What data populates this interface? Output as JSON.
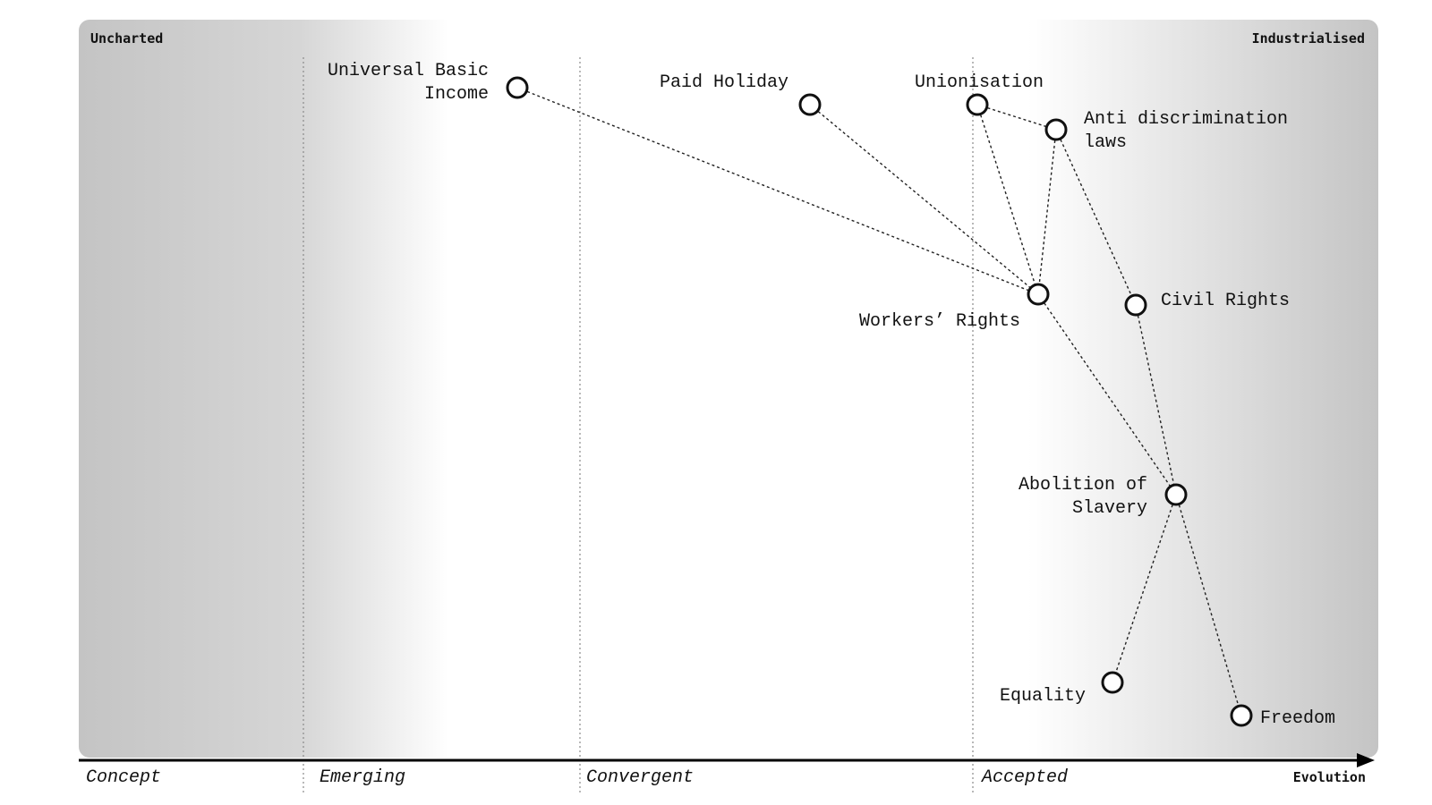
{
  "corners": {
    "top_left": "Uncharted",
    "top_right": "Industrialised"
  },
  "axis": {
    "name": "Evolution",
    "stages": [
      "Concept",
      "Emerging",
      "Convergent",
      "Accepted"
    ]
  },
  "nodes": [
    {
      "id": "ubi",
      "label": [
        "Universal Basic",
        "Income"
      ]
    },
    {
      "id": "paid-holiday",
      "label": [
        "Paid Holiday"
      ]
    },
    {
      "id": "unionisation",
      "label": [
        "Unionisation"
      ]
    },
    {
      "id": "anti-discrimination",
      "label": [
        "Anti discrimination",
        "laws"
      ]
    },
    {
      "id": "workers-rights",
      "label": [
        "Workers’ Rights"
      ]
    },
    {
      "id": "civil-rights",
      "label": [
        "Civil Rights"
      ]
    },
    {
      "id": "abolition",
      "label": [
        "Abolition of",
        "Slavery"
      ]
    },
    {
      "id": "equality",
      "label": [
        "Equality"
      ]
    },
    {
      "id": "freedom",
      "label": [
        "Freedom"
      ]
    }
  ],
  "links": [
    [
      "ubi",
      "workers-rights"
    ],
    [
      "paid-holiday",
      "workers-rights"
    ],
    [
      "unionisation",
      "workers-rights"
    ],
    [
      "unionisation",
      "anti-discrimination"
    ],
    [
      "anti-discrimination",
      "workers-rights"
    ],
    [
      "anti-discrimination",
      "civil-rights"
    ],
    [
      "workers-rights",
      "abolition"
    ],
    [
      "civil-rights",
      "abolition"
    ],
    [
      "abolition",
      "equality"
    ],
    [
      "abolition",
      "freedom"
    ]
  ]
}
